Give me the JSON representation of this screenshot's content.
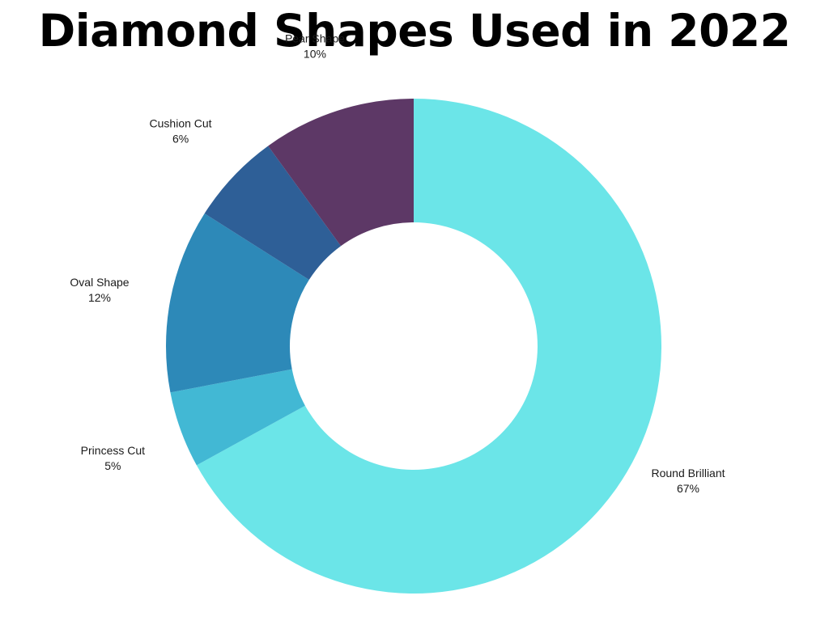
{
  "chart_data": {
    "type": "pie",
    "variant": "donut",
    "title": "Diamond Shapes Used in 2022",
    "start_angle_deg": 0,
    "direction": "clockwise",
    "slices": [
      {
        "label": "Round Brilliant",
        "value": 67,
        "value_label": "67%",
        "color": "#6be5e8"
      },
      {
        "label": "Princess Cut",
        "value": 5,
        "value_label": "5%",
        "color": "#42b8d4"
      },
      {
        "label": "Oval Shape",
        "value": 12,
        "value_label": "12%",
        "color": "#2d89b8"
      },
      {
        "label": "Cushion Cut",
        "value": 6,
        "value_label": "6%",
        "color": "#2e5f97"
      },
      {
        "label": "Pear Shape",
        "value": 10,
        "value_label": "10%",
        "color": "#5d3866"
      }
    ],
    "legend": "none"
  }
}
